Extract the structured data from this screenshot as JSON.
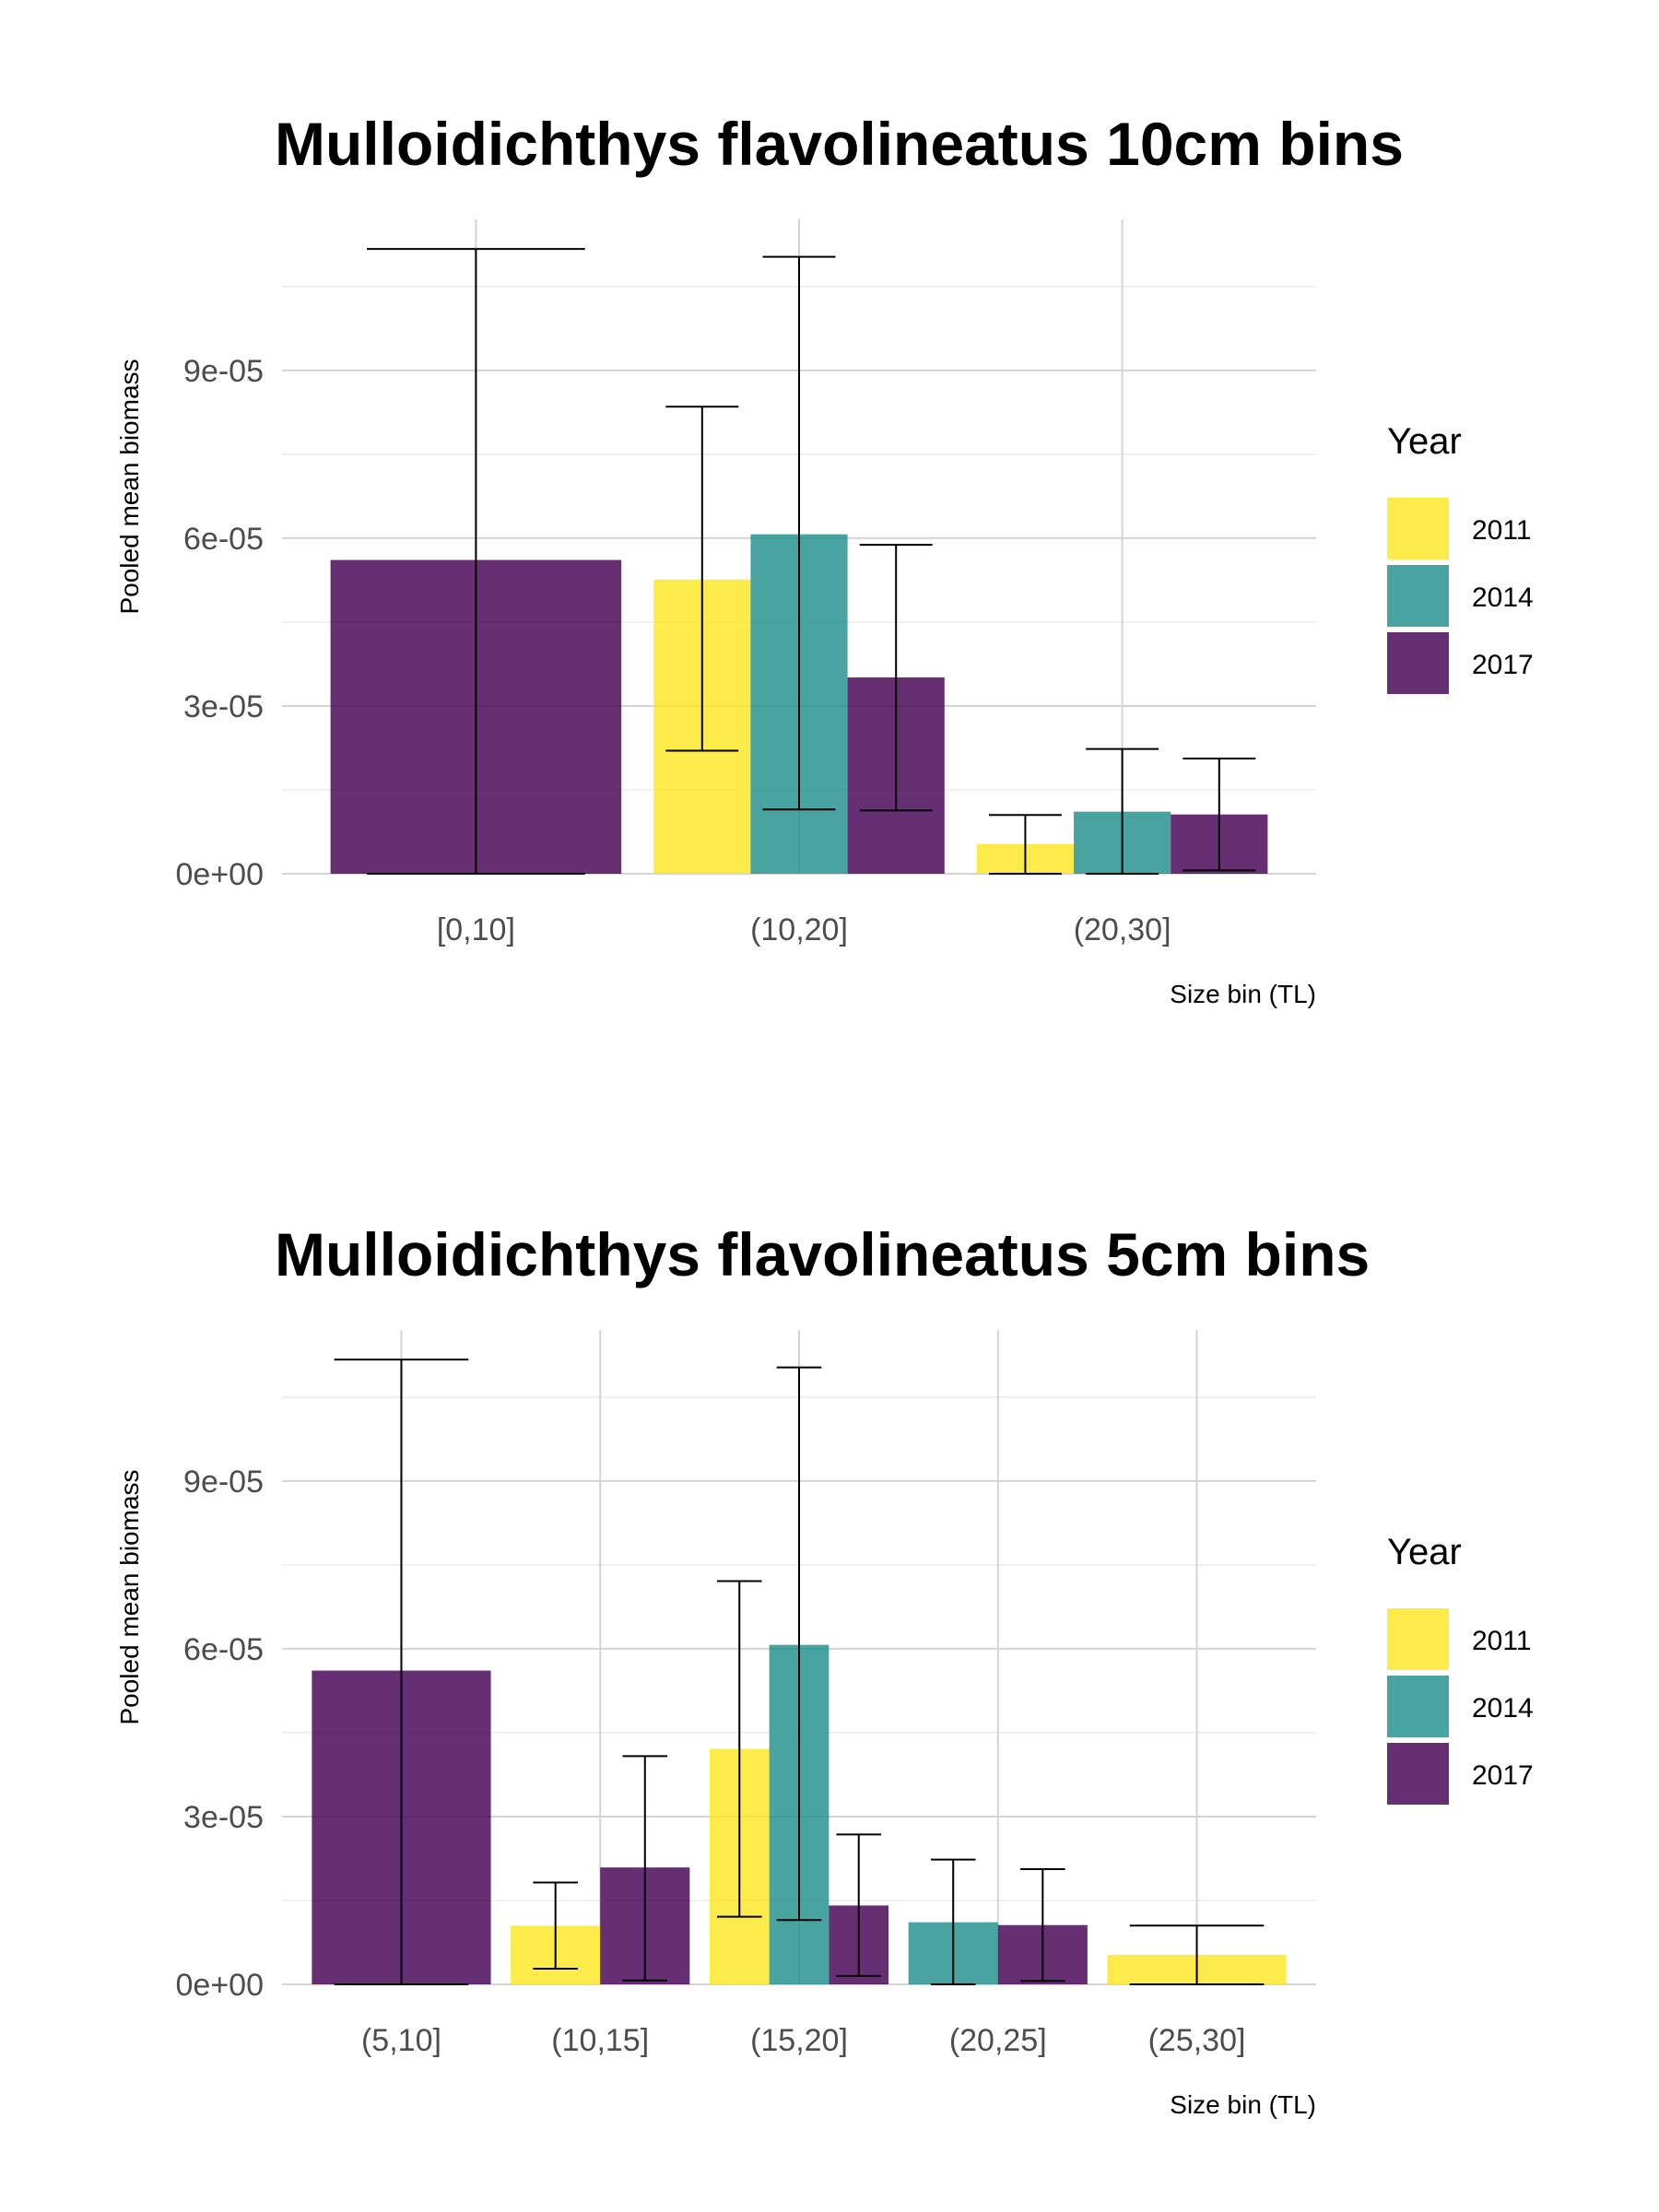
{
  "chart_data": [
    {
      "type": "bar",
      "title": "Mulloidichthys flavolineatus 10cm bins",
      "xlabel": "Size bin (TL)",
      "ylabel": "Pooled mean biomass",
      "ylim": [
        0,
        0.000117
      ],
      "yticks": [
        "0e+00",
        "3e-05",
        "6e-05",
        "9e-05"
      ],
      "ytick_values": [
        0,
        3e-05,
        6e-05,
        9e-05
      ],
      "grid": true,
      "legend": {
        "title": "Year",
        "position": "right"
      },
      "categories": [
        "[0,10]",
        "(10,20]",
        "(20,30]"
      ],
      "series": [
        {
          "name": "2011",
          "color": "#FDE725",
          "values": [
            null,
            5.26e-05,
            5.3e-06
          ],
          "err_low": [
            null,
            2.2e-05,
            0.0
          ],
          "err_high": [
            null,
            8.35e-05,
            1.05e-05
          ]
        },
        {
          "name": "2014",
          "color": "#21908C",
          "values": [
            null,
            6.07e-05,
            1.11e-05
          ],
          "err_low": [
            null,
            1.15e-05,
            0.0
          ],
          "err_high": [
            null,
            0.0001103,
            2.23e-05
          ]
        },
        {
          "name": "2017",
          "color": "#440154",
          "values": [
            5.61e-05,
            3.51e-05,
            1.06e-05
          ],
          "err_low": [
            0.0,
            1.13e-05,
            6e-07
          ],
          "err_high": [
            0.0001117,
            5.88e-05,
            2.06e-05
          ]
        }
      ]
    },
    {
      "type": "bar",
      "title": "Mulloidichthys flavolineatus 5cm bins",
      "xlabel": "Size bin (TL)",
      "ylabel": "Pooled mean biomass",
      "ylim": [
        0,
        0.000117
      ],
      "yticks": [
        "0e+00",
        "3e-05",
        "6e-05",
        "9e-05"
      ],
      "ytick_values": [
        0,
        3e-05,
        6e-05,
        9e-05
      ],
      "grid": true,
      "legend": {
        "title": "Year",
        "position": "right"
      },
      "categories": [
        "(5,10]",
        "(10,15]",
        "(15,20]",
        "(20,25]",
        "(25,30]"
      ],
      "series": [
        {
          "name": "2011",
          "color": "#FDE725",
          "values": [
            null,
            1.05e-05,
            4.21e-05,
            null,
            5.3e-06
          ],
          "err_low": [
            null,
            2.8e-06,
            1.21e-05,
            null,
            0.0
          ],
          "err_high": [
            null,
            1.82e-05,
            7.21e-05,
            null,
            1.05e-05
          ]
        },
        {
          "name": "2014",
          "color": "#21908C",
          "values": [
            null,
            null,
            6.07e-05,
            1.11e-05,
            null
          ],
          "err_low": [
            null,
            null,
            1.15e-05,
            0.0,
            null
          ],
          "err_high": [
            null,
            null,
            0.0001103,
            2.23e-05,
            null
          ]
        },
        {
          "name": "2017",
          "color": "#440154",
          "values": [
            5.61e-05,
            2.09e-05,
            1.41e-05,
            1.06e-05,
            null
          ],
          "err_low": [
            0.0,
            7e-07,
            1.5e-06,
            6e-07,
            null
          ],
          "err_high": [
            0.0001117,
            4.08e-05,
            2.68e-05,
            2.06e-05,
            null
          ]
        }
      ]
    }
  ]
}
